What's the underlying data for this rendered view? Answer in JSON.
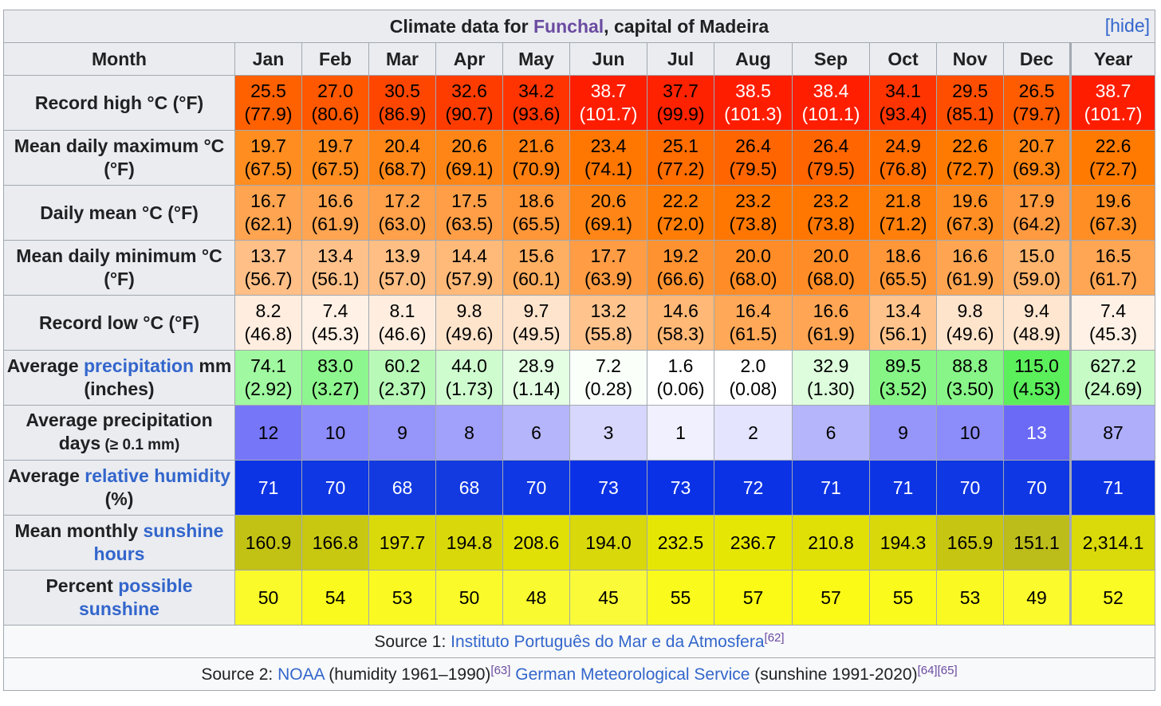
{
  "caption": {
    "prefix": "Climate data for ",
    "city": "Funchal",
    "suffix": ", capital of Madeira",
    "hide": "[hide]"
  },
  "header": {
    "month": "Month",
    "months": [
      "Jan",
      "Feb",
      "Mar",
      "Apr",
      "May",
      "Jun",
      "Jul",
      "Aug",
      "Sep",
      "Oct",
      "Nov",
      "Dec"
    ],
    "year": "Year"
  },
  "rows": [
    {
      "label_parts": [
        {
          "text": "Record high °C (°F)",
          "link": false
        }
      ],
      "values": [
        [
          "25.5",
          "(77.9)"
        ],
        [
          "27.0",
          "(80.6)"
        ],
        [
          "30.5",
          "(86.9)"
        ],
        [
          "32.6",
          "(90.7)"
        ],
        [
          "34.2",
          "(93.6)"
        ],
        [
          "38.7",
          "(101.7)"
        ],
        [
          "37.7",
          "(99.9)"
        ],
        [
          "38.5",
          "(101.3)"
        ],
        [
          "38.4",
          "(101.1)"
        ],
        [
          "34.1",
          "(93.4)"
        ],
        [
          "29.5",
          "(85.1)"
        ],
        [
          "26.5",
          "(79.7)"
        ],
        [
          "38.7",
          "(101.7)"
        ]
      ],
      "colors": [
        "#ff6000",
        "#ff5800",
        "#ff4600",
        "#ff3c00",
        "#ff3400",
        "#ff1d00",
        "#ff2200",
        "#ff1d00",
        "#ff1e00",
        "#ff3400",
        "#ff4e00",
        "#ff5c00",
        "#ff1d00"
      ],
      "text_colors": [
        "#000",
        "#000",
        "#000",
        "#000",
        "#000",
        "#fff",
        "#000",
        "#fff",
        "#fff",
        "#000",
        "#000",
        "#000",
        "#fff"
      ]
    },
    {
      "label_parts": [
        {
          "text": "Mean daily maximum °C (°F)",
          "link": false
        }
      ],
      "values": [
        [
          "19.7",
          "(67.5)"
        ],
        [
          "19.7",
          "(67.5)"
        ],
        [
          "20.4",
          "(68.7)"
        ],
        [
          "20.6",
          "(69.1)"
        ],
        [
          "21.6",
          "(70.9)"
        ],
        [
          "23.4",
          "(74.1)"
        ],
        [
          "25.1",
          "(77.2)"
        ],
        [
          "26.4",
          "(79.5)"
        ],
        [
          "26.4",
          "(79.5)"
        ],
        [
          "24.9",
          "(76.8)"
        ],
        [
          "22.6",
          "(72.7)"
        ],
        [
          "20.7",
          "(69.3)"
        ],
        [
          "22.6",
          "(72.7)"
        ]
      ],
      "colors": [
        "#ff8d20",
        "#ff8d20",
        "#ff8718",
        "#ff8616",
        "#ff8010",
        "#ff7600",
        "#ff6c00",
        "#ff6500",
        "#ff6500",
        "#ff6d00",
        "#ff7a00",
        "#ff8614",
        "#ff7a00"
      ],
      "text_colors": [
        "#000",
        "#000",
        "#000",
        "#000",
        "#000",
        "#000",
        "#000",
        "#000",
        "#000",
        "#000",
        "#000",
        "#000",
        "#000"
      ]
    },
    {
      "label_parts": [
        {
          "text": "Daily mean °C (°F)",
          "link": false
        }
      ],
      "values": [
        [
          "16.7",
          "(62.1)"
        ],
        [
          "16.6",
          "(61.9)"
        ],
        [
          "17.2",
          "(63.0)"
        ],
        [
          "17.5",
          "(63.5)"
        ],
        [
          "18.6",
          "(65.5)"
        ],
        [
          "20.6",
          "(69.1)"
        ],
        [
          "22.2",
          "(72.0)"
        ],
        [
          "23.2",
          "(73.8)"
        ],
        [
          "23.2",
          "(73.8)"
        ],
        [
          "21.8",
          "(71.2)"
        ],
        [
          "19.6",
          "(67.3)"
        ],
        [
          "17.9",
          "(64.2)"
        ],
        [
          "19.6",
          "(67.3)"
        ]
      ],
      "colors": [
        "#ffa450",
        "#ffa552",
        "#ffa04a",
        "#ff9e46",
        "#ff9638",
        "#ff8616",
        "#ff7d06",
        "#ff7700",
        "#ff7700",
        "#ff7f0a",
        "#ff8e24",
        "#ff9a40",
        "#ff8e24"
      ],
      "text_colors": [
        "#000",
        "#000",
        "#000",
        "#000",
        "#000",
        "#000",
        "#000",
        "#000",
        "#000",
        "#000",
        "#000",
        "#000",
        "#000"
      ]
    },
    {
      "label_parts": [
        {
          "text": "Mean daily minimum °C (°F)",
          "link": false
        }
      ],
      "values": [
        [
          "13.7",
          "(56.7)"
        ],
        [
          "13.4",
          "(56.1)"
        ],
        [
          "13.9",
          "(57.0)"
        ],
        [
          "14.4",
          "(57.9)"
        ],
        [
          "15.6",
          "(60.1)"
        ],
        [
          "17.7",
          "(63.9)"
        ],
        [
          "19.2",
          "(66.6)"
        ],
        [
          "20.0",
          "(68.0)"
        ],
        [
          "20.0",
          "(68.0)"
        ],
        [
          "18.6",
          "(65.5)"
        ],
        [
          "16.6",
          "(61.9)"
        ],
        [
          "15.0",
          "(59.0)"
        ],
        [
          "16.5",
          "(61.7)"
        ]
      ],
      "colors": [
        "#ffbf86",
        "#ffc18a",
        "#ffbe84",
        "#ffb978",
        "#ffaf62",
        "#ff9c44",
        "#ff9230",
        "#ff8c26",
        "#ff8c26",
        "#ff9638",
        "#ffa552",
        "#ffb46e",
        "#ffa654"
      ],
      "text_colors": [
        "#000",
        "#000",
        "#000",
        "#000",
        "#000",
        "#000",
        "#000",
        "#000",
        "#000",
        "#000",
        "#000",
        "#000",
        "#000"
      ]
    },
    {
      "label_parts": [
        {
          "text": "Record low °C (°F)",
          "link": false
        }
      ],
      "values": [
        [
          "8.2",
          "(46.8)"
        ],
        [
          "7.4",
          "(45.3)"
        ],
        [
          "8.1",
          "(46.6)"
        ],
        [
          "9.8",
          "(49.6)"
        ],
        [
          "9.7",
          "(49.5)"
        ],
        [
          "13.2",
          "(55.8)"
        ],
        [
          "14.6",
          "(58.3)"
        ],
        [
          "16.4",
          "(61.5)"
        ],
        [
          "16.6",
          "(61.9)"
        ],
        [
          "13.4",
          "(56.1)"
        ],
        [
          "9.8",
          "(49.6)"
        ],
        [
          "9.4",
          "(48.9)"
        ],
        [
          "7.4",
          "(45.3)"
        ]
      ],
      "colors": [
        "#ffeddf",
        "#fff1e6",
        "#ffeee0",
        "#ffe4cc",
        "#ffe4cd",
        "#ffc48e",
        "#ffb876",
        "#ffa858",
        "#ffa554",
        "#ffc38b",
        "#ffe4cc",
        "#ffe6d0",
        "#fff1e6"
      ],
      "text_colors": [
        "#000",
        "#000",
        "#000",
        "#000",
        "#000",
        "#000",
        "#000",
        "#000",
        "#000",
        "#000",
        "#000",
        "#000",
        "#000"
      ]
    },
    {
      "label_parts": [
        {
          "text": "Average ",
          "link": false
        },
        {
          "text": "precipitation",
          "link": true
        },
        {
          "text": " mm (inches)",
          "link": false
        }
      ],
      "values": [
        [
          "74.1",
          "(2.92)"
        ],
        [
          "83.0",
          "(3.27)"
        ],
        [
          "60.2",
          "(2.37)"
        ],
        [
          "44.0",
          "(1.73)"
        ],
        [
          "28.9",
          "(1.14)"
        ],
        [
          "7.2",
          "(0.28)"
        ],
        [
          "1.6",
          "(0.06)"
        ],
        [
          "2.0",
          "(0.08)"
        ],
        [
          "32.9",
          "(1.30)"
        ],
        [
          "89.5",
          "(3.52)"
        ],
        [
          "88.8",
          "(3.50)"
        ],
        [
          "115.0",
          "(4.53)"
        ],
        [
          "627.2",
          "(24.69)"
        ]
      ],
      "colors": [
        "#a0f9a0",
        "#8ef68e",
        "#b8f9b8",
        "#cffccf",
        "#e3fee3",
        "#fafffa",
        "#ffffff",
        "#ffffff",
        "#ddfddd",
        "#86f586",
        "#87f587",
        "#5cef5c",
        "#c6fbc6"
      ],
      "text_colors": [
        "#000",
        "#000",
        "#000",
        "#000",
        "#000",
        "#000",
        "#000",
        "#000",
        "#000",
        "#000",
        "#000",
        "#000",
        "#000"
      ]
    },
    {
      "label_parts": [
        {
          "text": "Average precipitation days",
          "link": false
        },
        {
          "text": " (≥ 0.1 mm)",
          "link": false,
          "small": true
        }
      ],
      "values": [
        [
          "12"
        ],
        [
          "10"
        ],
        [
          "9"
        ],
        [
          "8"
        ],
        [
          "6"
        ],
        [
          "3"
        ],
        [
          "1"
        ],
        [
          "2"
        ],
        [
          "6"
        ],
        [
          "9"
        ],
        [
          "10"
        ],
        [
          "13"
        ],
        [
          "87"
        ]
      ],
      "colors": [
        "#7676f8",
        "#8c8cfa",
        "#9595fa",
        "#a1a1fb",
        "#b5b5fc",
        "#d7d7fe",
        "#f0f0ff",
        "#e4e4fe",
        "#b5b5fc",
        "#9595fa",
        "#8c8cfa",
        "#6a6af6",
        "#aeaefb"
      ],
      "text_colors": [
        "#000",
        "#000",
        "#000",
        "#000",
        "#000",
        "#000",
        "#000",
        "#000",
        "#000",
        "#000",
        "#000",
        "#fff",
        "#000"
      ]
    },
    {
      "label_parts": [
        {
          "text": "Average ",
          "link": false
        },
        {
          "text": "relative humidity",
          "link": true
        },
        {
          "text": " (%)",
          "link": false
        }
      ],
      "values": [
        [
          "71"
        ],
        [
          "70"
        ],
        [
          "68"
        ],
        [
          "68"
        ],
        [
          "70"
        ],
        [
          "73"
        ],
        [
          "73"
        ],
        [
          "72"
        ],
        [
          "71"
        ],
        [
          "71"
        ],
        [
          "70"
        ],
        [
          "70"
        ],
        [
          "71"
        ]
      ],
      "colors": [
        "#0d34e4",
        "#0f37e3",
        "#123ae0",
        "#123ae0",
        "#0f37e3",
        "#0a31e6",
        "#0a31e6",
        "#0b33e5",
        "#0d34e4",
        "#0d34e4",
        "#0f37e3",
        "#0f37e3",
        "#0d34e4"
      ],
      "text_colors": [
        "#fff",
        "#fff",
        "#fff",
        "#fff",
        "#fff",
        "#fff",
        "#fff",
        "#fff",
        "#fff",
        "#fff",
        "#fff",
        "#fff",
        "#fff"
      ]
    },
    {
      "label_parts": [
        {
          "text": "Mean monthly ",
          "link": false
        },
        {
          "text": "sunshine hours",
          "link": true
        }
      ],
      "values": [
        [
          "160.9"
        ],
        [
          "166.8"
        ],
        [
          "197.7"
        ],
        [
          "194.8"
        ],
        [
          "208.6"
        ],
        [
          "194.0"
        ],
        [
          "232.5"
        ],
        [
          "236.7"
        ],
        [
          "210.8"
        ],
        [
          "194.3"
        ],
        [
          "165.9"
        ],
        [
          "151.1"
        ],
        [
          "2,314.1"
        ]
      ],
      "colors": [
        "#c2c214",
        "#c8c810",
        "#dada0a",
        "#d8d80a",
        "#e0e006",
        "#d8d80a",
        "#e6e604",
        "#e6e604",
        "#e0e006",
        "#d8d80a",
        "#c6c612",
        "#bcbc1a",
        "#dada0a"
      ],
      "text_colors": [
        "#000",
        "#000",
        "#000",
        "#000",
        "#000",
        "#000",
        "#000",
        "#000",
        "#000",
        "#000",
        "#000",
        "#000",
        "#000"
      ]
    },
    {
      "label_parts": [
        {
          "text": "Percent ",
          "link": false
        },
        {
          "text": "possible sunshine",
          "link": true
        }
      ],
      "values": [
        [
          "50"
        ],
        [
          "54"
        ],
        [
          "53"
        ],
        [
          "50"
        ],
        [
          "48"
        ],
        [
          "45"
        ],
        [
          "55"
        ],
        [
          "57"
        ],
        [
          "57"
        ],
        [
          "55"
        ],
        [
          "53"
        ],
        [
          "49"
        ],
        [
          "52"
        ]
      ],
      "colors": [
        "#fafa2a",
        "#fafa1e",
        "#fafa22",
        "#fafa2a",
        "#fafa30",
        "#fafa38",
        "#fafa1c",
        "#fafa16",
        "#fafa16",
        "#fafa1c",
        "#fafa22",
        "#fafa2d",
        "#fafa25"
      ],
      "text_colors": [
        "#000",
        "#000",
        "#000",
        "#000",
        "#000",
        "#000",
        "#000",
        "#000",
        "#000",
        "#000",
        "#000",
        "#000",
        "#000"
      ]
    }
  ],
  "sources": {
    "s1_prefix": "Source 1: ",
    "s1_link": "Instituto Português do Mar e da Atmosfera",
    "s1_ref": "[62]",
    "s2_prefix": "Source 2: ",
    "s2_link1": "NOAA",
    "s2_text1": " (humidity 1961–1990)",
    "s2_ref1": "[63]",
    "s2_link2": "German Meteorological Service",
    "s2_text2": " (sunshine 1991-2020)",
    "s2_ref2": "[64]",
    "s2_ref3": "[65]"
  },
  "colors": {
    "link": "#3366cc",
    "visited_link": "#6b4ba1",
    "header_bg": "#eaecf0",
    "border": "#a2a9b1"
  }
}
